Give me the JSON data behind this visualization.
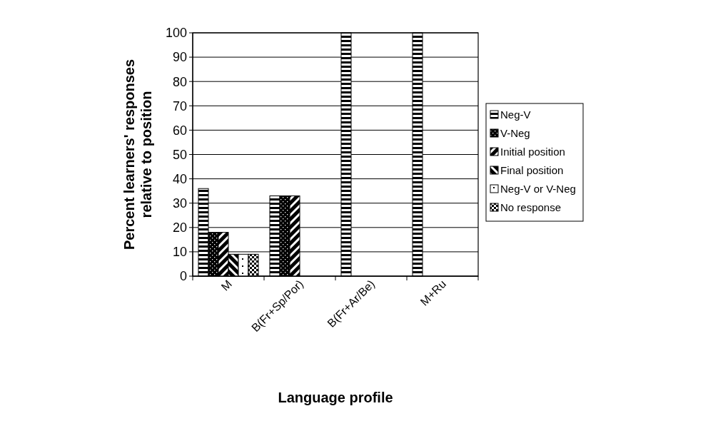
{
  "chart_data": {
    "type": "bar",
    "xlabel": "Language profile",
    "ylabel": "Percent learners' responses\nrelative to position",
    "categories": [
      "M",
      "B(Fr+Sp/Por)",
      "B(Fr+Ar/Be)",
      "M+Ru"
    ],
    "series": [
      {
        "name": "Neg-V",
        "color": "#000000",
        "values": [
          36,
          33,
          100,
          100
        ]
      },
      {
        "name": "V-Neg",
        "color": "#000000",
        "values": [
          18,
          33,
          0,
          0
        ]
      },
      {
        "name": "Initial position",
        "color": "#000000",
        "values": [
          18,
          33,
          0,
          0
        ]
      },
      {
        "name": "Final position",
        "color": "#000000",
        "values": [
          9,
          0,
          0,
          0
        ]
      },
      {
        "name": "Neg-V or V-Neg",
        "color": "#000000",
        "values": [
          9,
          0,
          0,
          0
        ]
      },
      {
        "name": "No response",
        "color": "#000000",
        "values": [
          9,
          0,
          0,
          0
        ]
      }
    ],
    "ylim": [
      0,
      100
    ],
    "yticks": [
      0,
      10,
      20,
      30,
      40,
      50,
      60,
      70,
      80,
      90,
      100
    ],
    "grid": "y",
    "legend": "right"
  }
}
